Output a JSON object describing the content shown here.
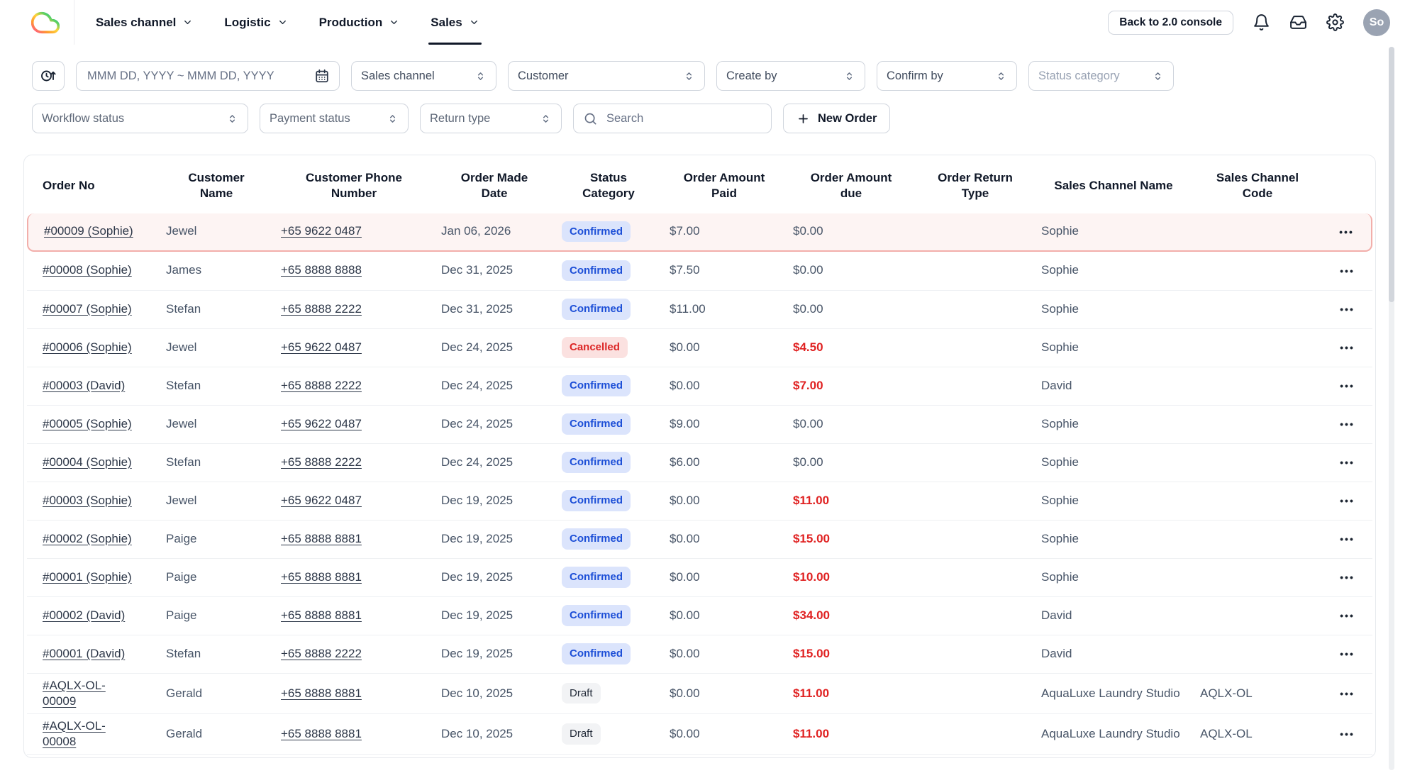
{
  "nav": {
    "items": [
      {
        "label": "Sales channel",
        "active": false
      },
      {
        "label": "Logistic",
        "active": false
      },
      {
        "label": "Production",
        "active": false
      },
      {
        "label": "Sales",
        "active": true
      }
    ],
    "back_button": "Back to 2.0 console",
    "avatar": "So"
  },
  "filters": {
    "date_placeholder": "MMM DD, YYYY ~ MMM DD, YYYY",
    "row1": [
      {
        "label": "Sales channel",
        "muted": false
      },
      {
        "label": "Customer",
        "muted": false
      },
      {
        "label": "Create by",
        "muted": false
      },
      {
        "label": "Confirm by",
        "muted": false
      },
      {
        "label": "Status category",
        "muted": true
      }
    ],
    "row2": [
      {
        "label": "Workflow status",
        "soft": true
      },
      {
        "label": "Payment status",
        "soft": true
      },
      {
        "label": "Return type",
        "soft": true
      }
    ],
    "search_placeholder": "Search",
    "new_order_label": "New Order"
  },
  "table": {
    "columns": [
      {
        "key": "order_no",
        "label": "Order No"
      },
      {
        "key": "customer_name",
        "label": "Customer\nName"
      },
      {
        "key": "phone",
        "label": "Customer Phone\nNumber"
      },
      {
        "key": "date",
        "label": "Order Made\nDate"
      },
      {
        "key": "status",
        "label": "Status\nCategory"
      },
      {
        "key": "paid",
        "label": "Order Amount\nPaid"
      },
      {
        "key": "due",
        "label": "Order Amount\ndue"
      },
      {
        "key": "return_type",
        "label": "Order Return\nType"
      },
      {
        "key": "channel_name",
        "label": "Sales Channel Name"
      },
      {
        "key": "channel_code",
        "label": "Sales Channel\nCode"
      },
      {
        "key": "actions",
        "label": ""
      }
    ],
    "actions_glyph": "•••",
    "rows": [
      {
        "order_no": "#00009 (Sophie)",
        "customer_name": "Jewel",
        "phone": "+65 9622 0487",
        "date": "Jan 06, 2026",
        "status": "Confirmed",
        "paid": "$7.00",
        "due": "$0.00",
        "due_alert": false,
        "return_type": "",
        "channel_name": "Sophie",
        "channel_code": "",
        "selected": true
      },
      {
        "order_no": "#00008 (Sophie)",
        "customer_name": "James",
        "phone": "+65 8888 8888",
        "date": "Dec 31, 2025",
        "status": "Confirmed",
        "paid": "$7.50",
        "due": "$0.00",
        "due_alert": false,
        "return_type": "",
        "channel_name": "Sophie",
        "channel_code": "",
        "selected": false
      },
      {
        "order_no": "#00007 (Sophie)",
        "customer_name": "Stefan",
        "phone": "+65 8888 2222",
        "date": "Dec 31, 2025",
        "status": "Confirmed",
        "paid": "$11.00",
        "due": "$0.00",
        "due_alert": false,
        "return_type": "",
        "channel_name": "Sophie",
        "channel_code": "",
        "selected": false
      },
      {
        "order_no": "#00006 (Sophie)",
        "customer_name": "Jewel",
        "phone": "+65 9622 0487",
        "date": "Dec 24, 2025",
        "status": "Cancelled",
        "paid": "$0.00",
        "due": "$4.50",
        "due_alert": true,
        "return_type": "",
        "channel_name": "Sophie",
        "channel_code": "",
        "selected": false
      },
      {
        "order_no": "#00003 (David)",
        "customer_name": "Stefan",
        "phone": "+65 8888 2222",
        "date": "Dec 24, 2025",
        "status": "Confirmed",
        "paid": "$0.00",
        "due": "$7.00",
        "due_alert": true,
        "return_type": "",
        "channel_name": "David",
        "channel_code": "",
        "selected": false
      },
      {
        "order_no": "#00005 (Sophie)",
        "customer_name": "Jewel",
        "phone": "+65 9622 0487",
        "date": "Dec 24, 2025",
        "status": "Confirmed",
        "paid": "$9.00",
        "due": "$0.00",
        "due_alert": false,
        "return_type": "",
        "channel_name": "Sophie",
        "channel_code": "",
        "selected": false
      },
      {
        "order_no": "#00004 (Sophie)",
        "customer_name": "Stefan",
        "phone": "+65 8888 2222",
        "date": "Dec 24, 2025",
        "status": "Confirmed",
        "paid": "$6.00",
        "due": "$0.00",
        "due_alert": false,
        "return_type": "",
        "channel_name": "Sophie",
        "channel_code": "",
        "selected": false
      },
      {
        "order_no": "#00003 (Sophie)",
        "customer_name": "Jewel",
        "phone": "+65 9622 0487",
        "date": "Dec 19, 2025",
        "status": "Confirmed",
        "paid": "$0.00",
        "due": "$11.00",
        "due_alert": true,
        "return_type": "",
        "channel_name": "Sophie",
        "channel_code": "",
        "selected": false
      },
      {
        "order_no": "#00002 (Sophie)",
        "customer_name": "Paige",
        "phone": "+65 8888 8881",
        "date": "Dec 19, 2025",
        "status": "Confirmed",
        "paid": "$0.00",
        "due": "$15.00",
        "due_alert": true,
        "return_type": "",
        "channel_name": "Sophie",
        "channel_code": "",
        "selected": false
      },
      {
        "order_no": "#00001 (Sophie)",
        "customer_name": "Paige",
        "phone": "+65 8888 8881",
        "date": "Dec 19, 2025",
        "status": "Confirmed",
        "paid": "$0.00",
        "due": "$10.00",
        "due_alert": true,
        "return_type": "",
        "channel_name": "Sophie",
        "channel_code": "",
        "selected": false
      },
      {
        "order_no": "#00002 (David)",
        "customer_name": "Paige",
        "phone": "+65 8888 8881",
        "date": "Dec 19, 2025",
        "status": "Confirmed",
        "paid": "$0.00",
        "due": "$34.00",
        "due_alert": true,
        "return_type": "",
        "channel_name": "David",
        "channel_code": "",
        "selected": false
      },
      {
        "order_no": "#00001 (David)",
        "customer_name": "Stefan",
        "phone": "+65 8888 2222",
        "date": "Dec 19, 2025",
        "status": "Confirmed",
        "paid": "$0.00",
        "due": "$15.00",
        "due_alert": true,
        "return_type": "",
        "channel_name": "David",
        "channel_code": "",
        "selected": false
      },
      {
        "order_no": "#AQLX-OL-\n00009",
        "customer_name": "Gerald",
        "phone": "+65 8888 8881",
        "date": "Dec 10, 2025",
        "status": "Draft",
        "paid": "$0.00",
        "due": "$11.00",
        "due_alert": true,
        "return_type": "",
        "channel_name": "AquaLuxe Laundry Studio",
        "channel_code": "AQLX-OL",
        "selected": false
      },
      {
        "order_no": "#AQLX-OL-\n00008",
        "customer_name": "Gerald",
        "phone": "+65 8888 8881",
        "date": "Dec 10, 2025",
        "status": "Draft",
        "paid": "$0.00",
        "due": "$11.00",
        "due_alert": true,
        "return_type": "",
        "channel_name": "AquaLuxe Laundry Studio",
        "channel_code": "AQLX-OL",
        "selected": false
      }
    ]
  },
  "icons": {
    "logo": "rainbow-cloud-outline",
    "nav_caret": "chevron-down",
    "sort": "clock-with-up-arrow",
    "date": "calendar",
    "select_caret": "chevron-up-down-selector",
    "search": "magnifier",
    "new_order": "plus",
    "notifications": "bell",
    "inbox": "inbox-tray",
    "settings": "gear",
    "row_menu": "ellipsis-dots"
  },
  "colors": {
    "status_confirmed_bg": "#dbe4fc",
    "status_confirmed_text": "#1d4fd7",
    "status_cancelled_bg": "#fbe1e0",
    "status_cancelled_text": "#dc2626",
    "status_draft_bg": "#f2f3f5",
    "status_draft_text": "#232b39",
    "amount_due_alert": "#e02222",
    "selected_row_ring": "#f2aeaa",
    "selected_row_bg": "#fdf4f3"
  }
}
